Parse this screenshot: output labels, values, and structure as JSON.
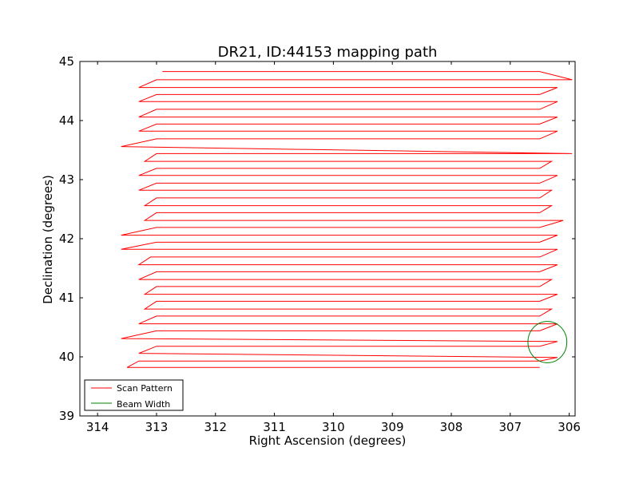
{
  "chart_data": {
    "type": "line",
    "title": "DR21, ID:44153 mapping path",
    "xlabel": "Right Ascension (degrees)",
    "ylabel": "Declination (degrees)",
    "xlim": [
      314.3,
      305.9
    ],
    "ylim": [
      39,
      45
    ],
    "x_inverted": true,
    "x_ticks": [
      314,
      313,
      312,
      311,
      310,
      309,
      308,
      307,
      306
    ],
    "y_ticks": [
      39,
      40,
      41,
      42,
      43,
      44,
      45
    ],
    "grid": false,
    "legend": {
      "placement": "lower-left",
      "entries": [
        {
          "label": "Scan Pattern",
          "color": "#ff0000"
        },
        {
          "label": "Beam Width",
          "color": "#008000"
        }
      ]
    },
    "series": [
      {
        "name": "Scan Pattern",
        "color": "#ff0000",
        "points": [
          [
            306.5,
            39.82
          ],
          [
            313.5,
            39.82
          ],
          [
            313.3,
            39.93
          ],
          [
            306.5,
            39.93
          ],
          [
            306.2,
            39.99
          ],
          [
            313.3,
            40.06
          ],
          [
            313.0,
            40.18
          ],
          [
            306.5,
            40.18
          ],
          [
            306.2,
            40.26
          ],
          [
            313.6,
            40.31
          ],
          [
            313.0,
            40.44
          ],
          [
            306.5,
            40.44
          ],
          [
            306.2,
            40.56
          ],
          [
            313.3,
            40.56
          ],
          [
            313.0,
            40.69
          ],
          [
            306.5,
            40.69
          ],
          [
            306.3,
            40.81
          ],
          [
            313.2,
            40.81
          ],
          [
            313.0,
            40.94
          ],
          [
            306.5,
            40.94
          ],
          [
            306.2,
            41.06
          ],
          [
            313.2,
            41.06
          ],
          [
            313.0,
            41.19
          ],
          [
            306.5,
            41.19
          ],
          [
            306.3,
            41.31
          ],
          [
            313.3,
            41.31
          ],
          [
            313.0,
            41.44
          ],
          [
            306.5,
            41.44
          ],
          [
            306.2,
            41.56
          ],
          [
            313.3,
            41.56
          ],
          [
            313.1,
            41.69
          ],
          [
            306.5,
            41.69
          ],
          [
            306.2,
            41.82
          ],
          [
            313.6,
            41.82
          ],
          [
            313.0,
            41.94
          ],
          [
            306.5,
            41.94
          ],
          [
            306.2,
            42.06
          ],
          [
            313.6,
            42.06
          ],
          [
            313.0,
            42.19
          ],
          [
            306.5,
            42.19
          ],
          [
            306.1,
            42.31
          ],
          [
            313.2,
            42.31
          ],
          [
            313.0,
            42.44
          ],
          [
            306.5,
            42.44
          ],
          [
            306.3,
            42.56
          ],
          [
            313.2,
            42.56
          ],
          [
            313.0,
            42.69
          ],
          [
            306.5,
            42.69
          ],
          [
            306.3,
            42.82
          ],
          [
            313.3,
            42.82
          ],
          [
            313.0,
            42.94
          ],
          [
            306.5,
            42.94
          ],
          [
            306.2,
            43.07
          ],
          [
            313.3,
            43.07
          ],
          [
            313.0,
            43.19
          ],
          [
            306.5,
            43.19
          ],
          [
            306.3,
            43.31
          ],
          [
            313.2,
            43.31
          ],
          [
            313.0,
            43.44
          ],
          [
            306.5,
            43.44
          ],
          [
            305.95,
            43.44
          ],
          [
            313.6,
            43.56
          ],
          [
            313.0,
            43.69
          ],
          [
            306.5,
            43.69
          ],
          [
            306.2,
            43.82
          ],
          [
            313.3,
            43.82
          ],
          [
            313.0,
            43.94
          ],
          [
            306.5,
            43.94
          ],
          [
            306.2,
            44.06
          ],
          [
            313.3,
            44.06
          ],
          [
            313.0,
            44.19
          ],
          [
            306.5,
            44.19
          ],
          [
            306.2,
            44.32
          ],
          [
            313.3,
            44.32
          ],
          [
            313.0,
            44.44
          ],
          [
            306.5,
            44.44
          ],
          [
            306.2,
            44.56
          ],
          [
            313.3,
            44.56
          ],
          [
            313.0,
            44.69
          ],
          [
            306.5,
            44.69
          ],
          [
            305.95,
            44.69
          ],
          [
            306.5,
            44.83
          ],
          [
            312.9,
            44.83
          ]
        ]
      }
    ],
    "beam": {
      "name": "Beam Width",
      "color": "#008000",
      "center": [
        306.37,
        40.25
      ],
      "radius_ra": 0.33,
      "radius_dec": 0.35
    }
  }
}
